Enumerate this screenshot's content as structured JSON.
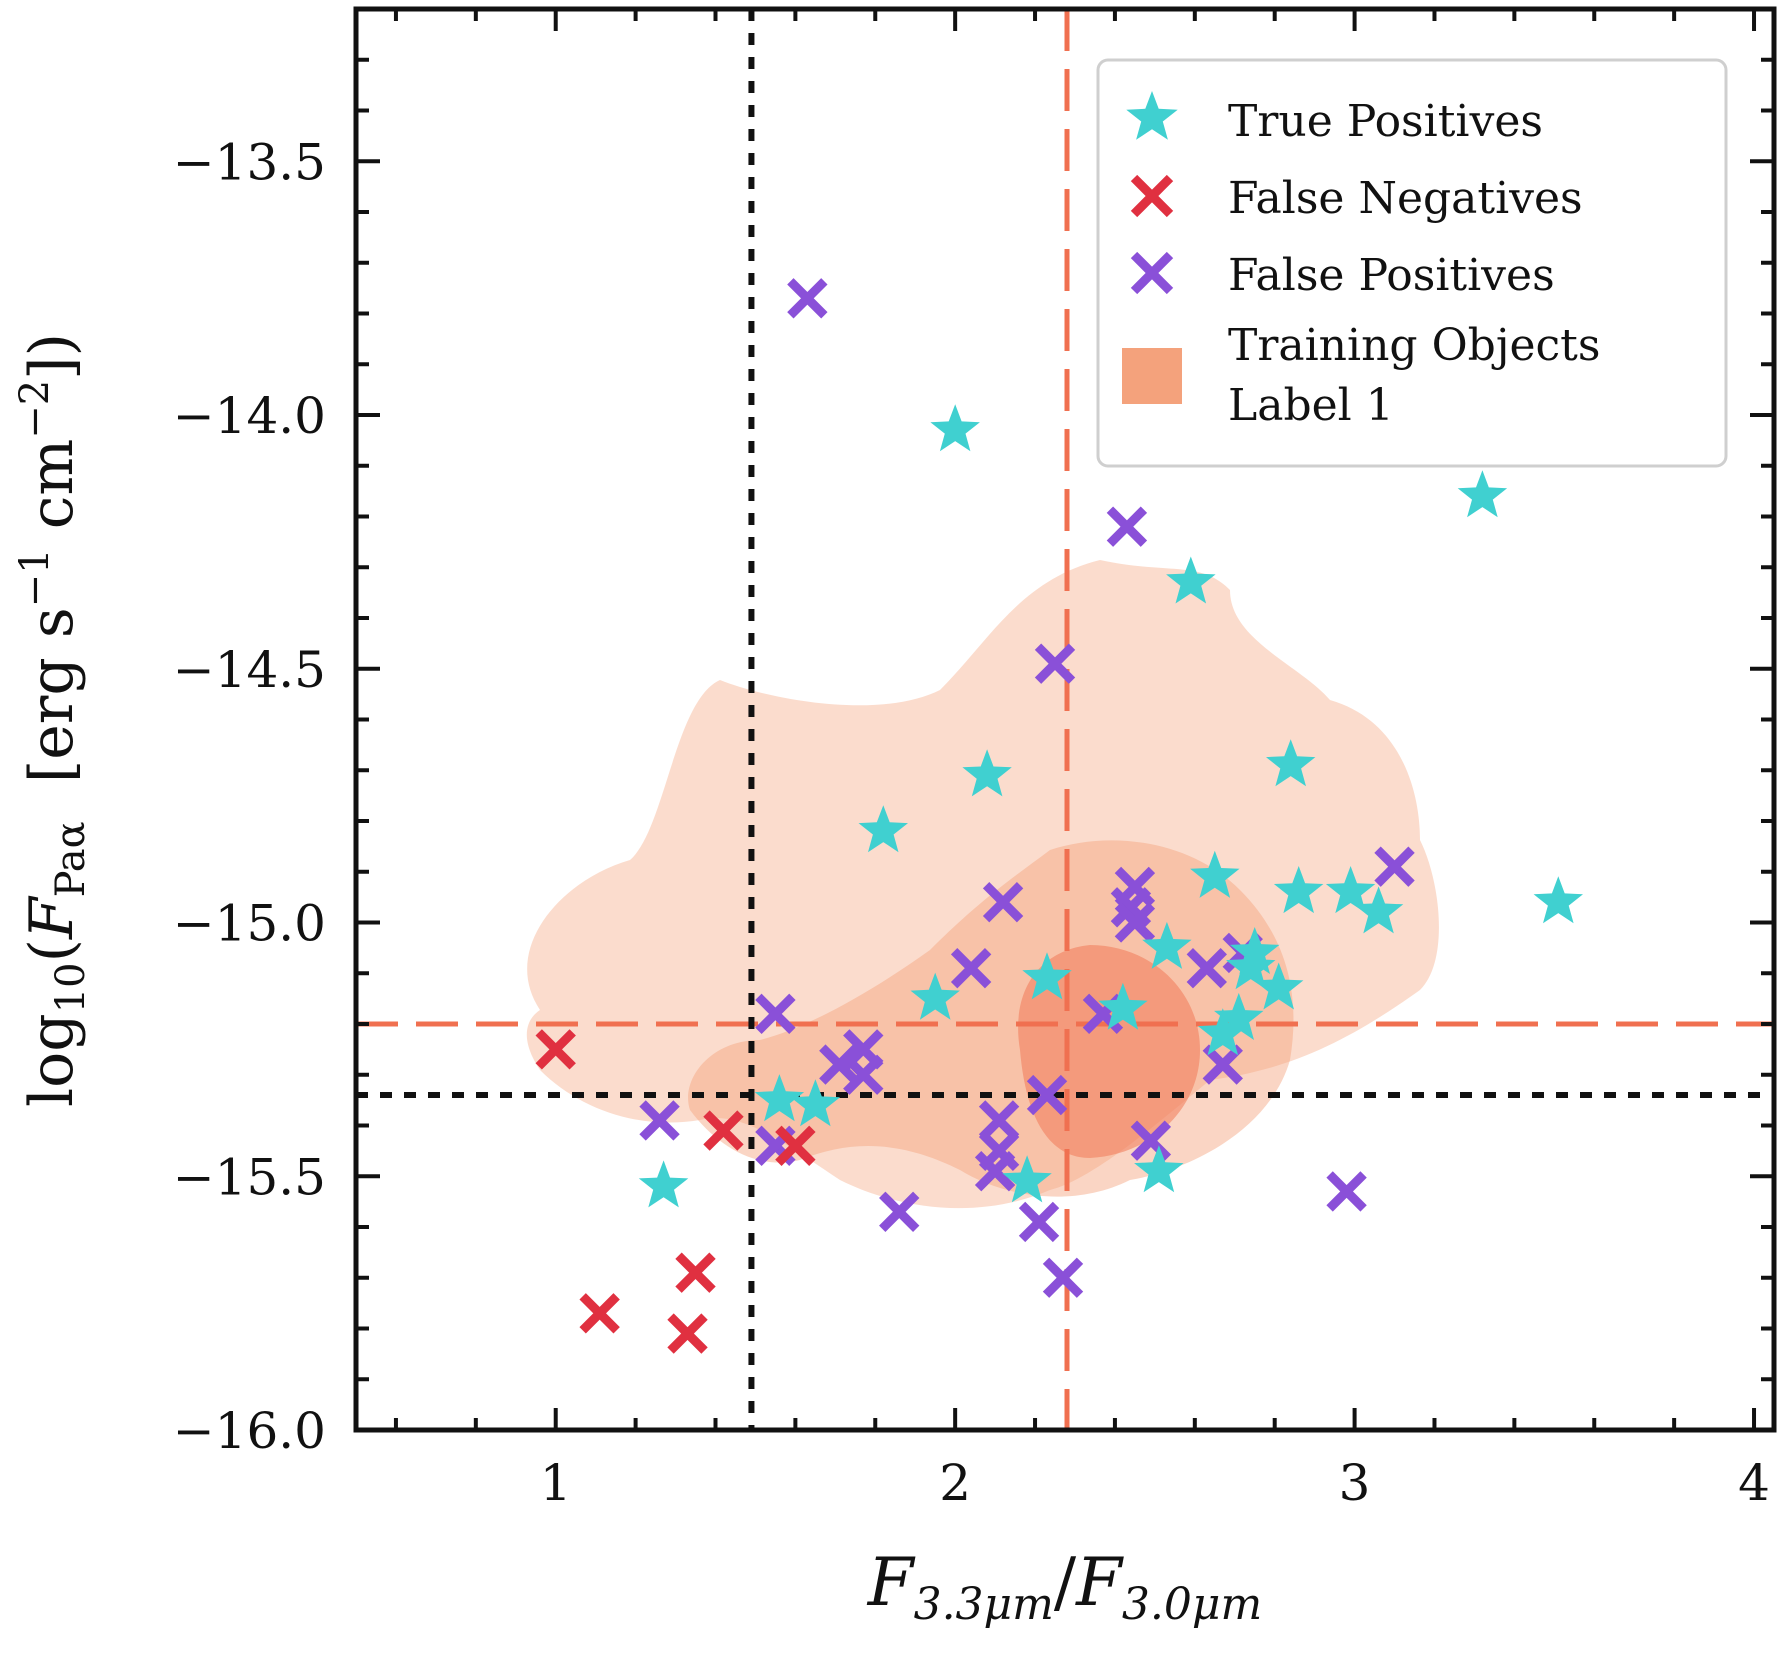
{
  "chart_data": {
    "type": "scatter",
    "title": "",
    "xlabel_parts": {
      "f1": "F",
      "sub1": "3.3μm",
      "slash": "/",
      "f2": "F",
      "sub2": "3.0μm"
    },
    "ylabel_parts": {
      "log": "log",
      "logsub": "10",
      "open": "(",
      "f": "F",
      "fsub": "Paα",
      "units_open": "  [erg s",
      "exp1": "−1",
      "units_mid": " cm",
      "exp2": "−2",
      "close": "])"
    },
    "xlim": [
      0.5,
      4.05
    ],
    "ylim": [
      -16.0,
      -13.2
    ],
    "xticks": [
      1,
      2,
      3,
      4
    ],
    "xtick_labels": [
      "1",
      "2",
      "3",
      "4"
    ],
    "yticks": [
      -16.0,
      -15.5,
      -15.0,
      -14.5,
      -14.0,
      -13.5
    ],
    "ytick_labels": [
      "−16.0",
      "−15.5",
      "−15.0",
      "−14.5",
      "−14.0",
      "−13.5"
    ],
    "colors": {
      "true_positives": "#40d0d0",
      "false_negatives": "#e03040",
      "false_positives": "#8a50d8",
      "training": "#f4a27c",
      "threshold_orange": "#f07050",
      "threshold_black": "#111111"
    },
    "thresholds": {
      "orange_vertical_x": 2.28,
      "orange_horizontal_y": -15.2,
      "black_vertical_x": 1.49,
      "black_horizontal_y": -15.34
    },
    "legend": {
      "position": "top-right",
      "entries": [
        "True Positives",
        "False Negatives",
        "False Positives",
        "Training Objects",
        "Label 1"
      ]
    },
    "series": [
      {
        "name": "True Positives",
        "marker": "star",
        "points": [
          [
            2.0,
            -14.03
          ],
          [
            3.32,
            -14.16
          ],
          [
            2.59,
            -14.33
          ],
          [
            2.08,
            -14.71
          ],
          [
            1.82,
            -14.82
          ],
          [
            2.84,
            -14.69
          ],
          [
            2.65,
            -14.91
          ],
          [
            2.86,
            -14.94
          ],
          [
            2.99,
            -14.94
          ],
          [
            3.06,
            -14.98
          ],
          [
            3.51,
            -14.96
          ],
          [
            2.53,
            -15.05
          ],
          [
            2.75,
            -15.06
          ],
          [
            2.74,
            -15.09
          ],
          [
            2.23,
            -15.11
          ],
          [
            1.95,
            -15.15
          ],
          [
            2.81,
            -15.13
          ],
          [
            2.42,
            -15.17
          ],
          [
            2.71,
            -15.19
          ],
          [
            2.67,
            -15.22
          ],
          [
            1.56,
            -15.35
          ],
          [
            1.65,
            -15.36
          ],
          [
            1.27,
            -15.52
          ],
          [
            2.18,
            -15.51
          ],
          [
            2.51,
            -15.49
          ]
        ]
      },
      {
        "name": "False Negatives",
        "marker": "x",
        "points": [
          [
            1.0,
            -15.25
          ],
          [
            1.42,
            -15.41
          ],
          [
            1.6,
            -15.44
          ],
          [
            1.35,
            -15.69
          ],
          [
            1.11,
            -15.77
          ],
          [
            1.33,
            -15.81
          ]
        ]
      },
      {
        "name": "False Positives",
        "marker": "x",
        "points": [
          [
            1.63,
            -13.77
          ],
          [
            2.43,
            -14.22
          ],
          [
            2.25,
            -14.49
          ],
          [
            2.45,
            -14.93
          ],
          [
            2.44,
            -14.97
          ],
          [
            3.1,
            -14.89
          ],
          [
            2.12,
            -14.96
          ],
          [
            2.45,
            -15.0
          ],
          [
            2.04,
            -15.09
          ],
          [
            2.63,
            -15.09
          ],
          [
            2.72,
            -15.06
          ],
          [
            1.55,
            -15.18
          ],
          [
            2.37,
            -15.18
          ],
          [
            1.77,
            -15.25
          ],
          [
            1.71,
            -15.28
          ],
          [
            1.77,
            -15.3
          ],
          [
            2.67,
            -15.28
          ],
          [
            2.23,
            -15.34
          ],
          [
            1.26,
            -15.39
          ],
          [
            2.11,
            -15.39
          ],
          [
            2.11,
            -15.45
          ],
          [
            1.55,
            -15.44
          ],
          [
            2.1,
            -15.49
          ],
          [
            2.49,
            -15.43
          ],
          [
            2.98,
            -15.53
          ],
          [
            1.86,
            -15.57
          ],
          [
            2.21,
            -15.59
          ],
          [
            2.27,
            -15.7
          ]
        ]
      }
    ],
    "training_density_levels": [
      "outer",
      "middle",
      "inner"
    ]
  }
}
